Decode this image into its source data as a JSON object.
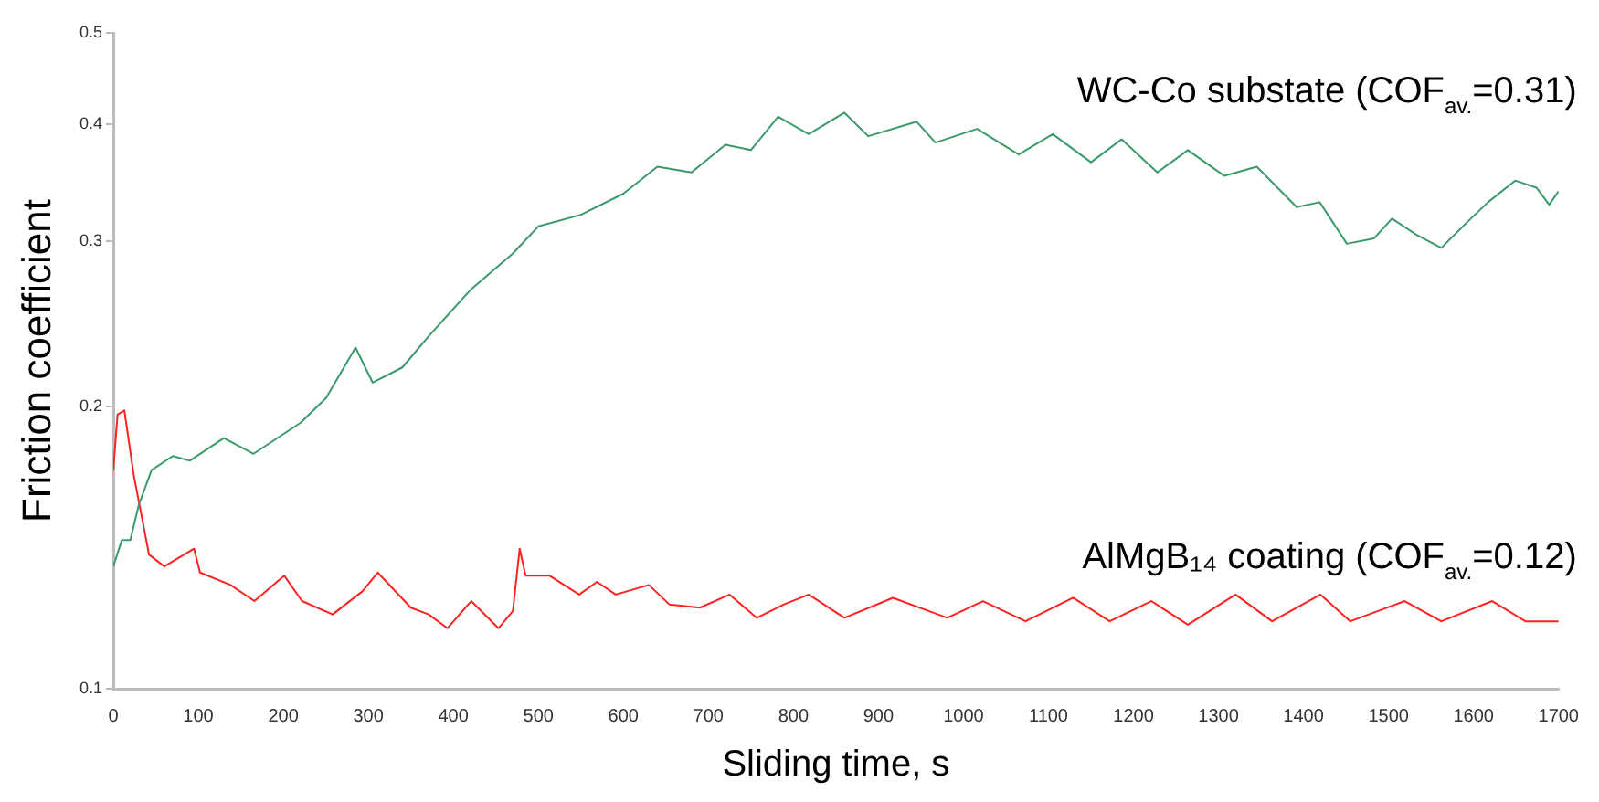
{
  "chart_data": {
    "type": "line",
    "xlabel": "Sliding time, s",
    "ylabel": "Friction coefficient",
    "log": "y",
    "grid": false,
    "legend": false,
    "marker": "none",
    "xlim": [
      0,
      1700
    ],
    "xticks": [
      0,
      100,
      200,
      300,
      400,
      500,
      600,
      700,
      800,
      900,
      1000,
      1100,
      1200,
      1300,
      1400,
      1500,
      1600,
      1700
    ],
    "ylim": [
      0.1,
      0.5
    ],
    "yticks": [
      0.1,
      0.2,
      0.3,
      0.4,
      0.5
    ],
    "annotations": [
      "WC-Co substate (COF$_{av.}$=0.31)",
      "AlMgB₁₄ coating (COF$_{av.}$=0.12)"
    ],
    "series": [
      {
        "color": "#3a9a6a",
        "x": [
          0,
          10,
          20,
          30,
          45,
          70,
          90,
          130,
          165,
          220,
          250,
          285,
          305,
          340,
          370,
          420,
          470,
          500,
          550,
          600,
          640,
          680,
          720,
          750,
          782,
          818,
          860,
          888,
          945,
          967,
          1016,
          1065,
          1105,
          1150,
          1186,
          1228,
          1264,
          1307,
          1345,
          1392,
          1419,
          1451,
          1483,
          1504,
          1532,
          1562,
          1589,
          1617,
          1649,
          1674,
          1689,
          1700
        ],
        "values": [
          0.135,
          0.144,
          0.144,
          0.157,
          0.171,
          0.177,
          0.175,
          0.185,
          0.178,
          0.192,
          0.204,
          0.231,
          0.212,
          0.22,
          0.237,
          0.266,
          0.291,
          0.311,
          0.32,
          0.337,
          0.36,
          0.355,
          0.38,
          0.375,
          0.407,
          0.39,
          0.411,
          0.388,
          0.402,
          0.382,
          0.395,
          0.371,
          0.39,
          0.364,
          0.385,
          0.355,
          0.375,
          0.352,
          0.36,
          0.326,
          0.33,
          0.298,
          0.302,
          0.317,
          0.305,
          0.295,
          0.312,
          0.33,
          0.348,
          0.342,
          0.328,
          0.339
        ]
      },
      {
        "color": "#ff2020",
        "x": [
          0,
          5,
          13,
          24,
          35,
          42,
          60,
          95,
          102,
          138,
          166,
          201,
          222,
          258,
          293,
          311,
          350,
          371,
          393,
          421,
          453,
          470,
          478,
          485,
          513,
          548,
          569,
          591,
          630,
          654,
          690,
          725,
          757,
          789,
          818,
          860,
          917,
          981,
          1023,
          1073,
          1129,
          1172,
          1221,
          1264,
          1320,
          1363,
          1420,
          1455,
          1519,
          1562,
          1622,
          1661,
          1700
        ],
        "values": [
          0.171,
          0.196,
          0.198,
          0.169,
          0.15,
          0.139,
          0.135,
          0.141,
          0.133,
          0.129,
          0.124,
          0.132,
          0.124,
          0.12,
          0.127,
          0.133,
          0.122,
          0.12,
          0.116,
          0.124,
          0.116,
          0.121,
          0.141,
          0.132,
          0.132,
          0.126,
          0.13,
          0.126,
          0.129,
          0.123,
          0.122,
          0.126,
          0.119,
          0.123,
          0.126,
          0.119,
          0.125,
          0.119,
          0.124,
          0.118,
          0.125,
          0.118,
          0.124,
          0.117,
          0.126,
          0.118,
          0.126,
          0.118,
          0.124,
          0.118,
          0.124,
          0.118,
          0.118
        ]
      }
    ]
  }
}
